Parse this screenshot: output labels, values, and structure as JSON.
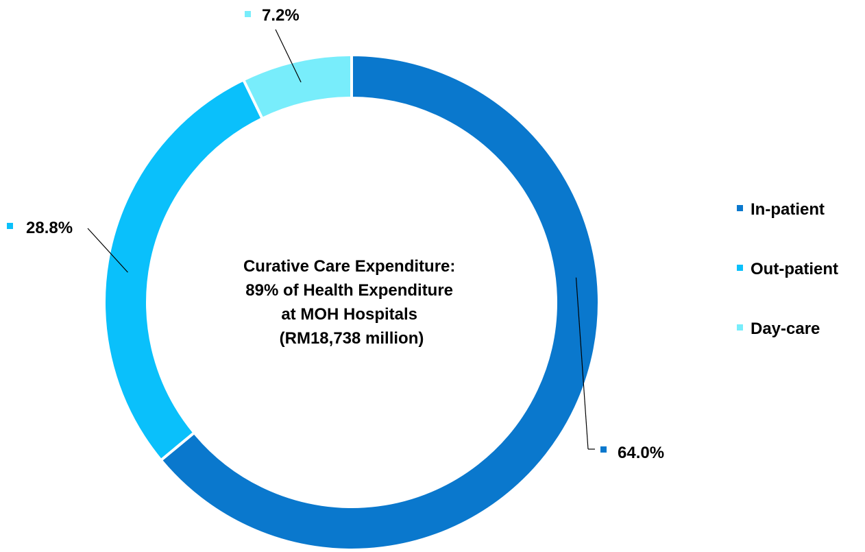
{
  "chart_data": {
    "type": "pie",
    "style": "donut",
    "center_text": [
      "Curative Care Expenditure:",
      "89% of Health Expenditure",
      "at MOH Hospitals",
      "(RM18,738 million)"
    ],
    "slices": [
      {
        "name": "In-patient",
        "value": 64.0,
        "label": "64.0%",
        "color": "#0a78cd"
      },
      {
        "name": "Out-patient",
        "value": 28.8,
        "label": "28.8%",
        "color": "#0ac0fb"
      },
      {
        "name": "Day-care",
        "value": 7.2,
        "label": "7.2%",
        "color": "#78edfb"
      }
    ],
    "legend_position": "right"
  }
}
